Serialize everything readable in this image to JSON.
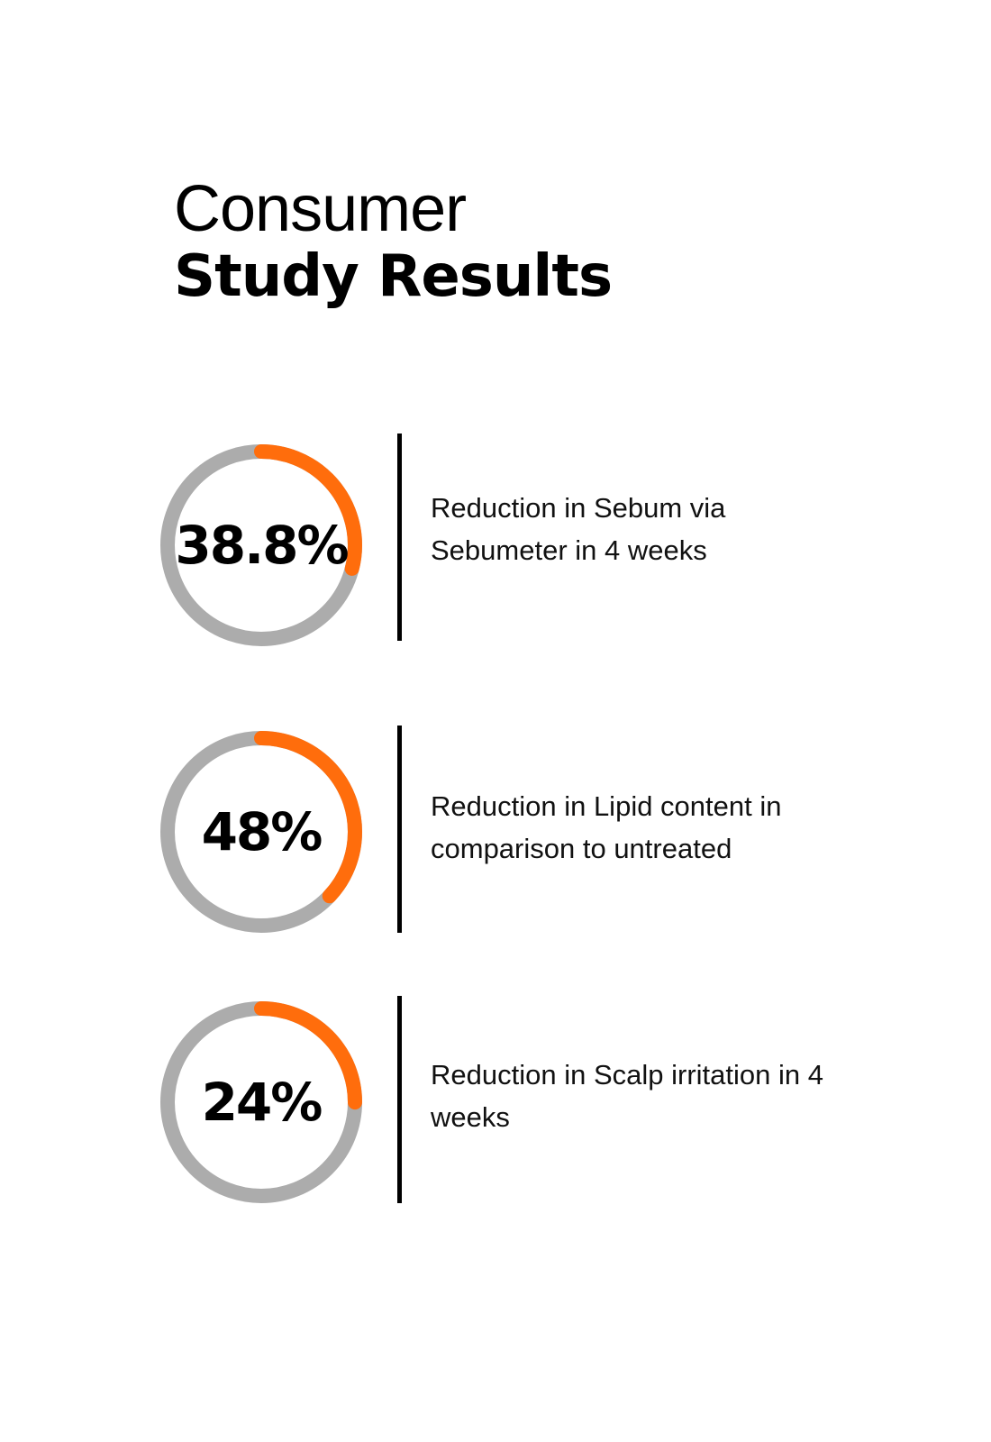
{
  "title": {
    "line1": "Consumer",
    "line2": "Study Results"
  },
  "colors": {
    "accent": "#ff6d0c",
    "track": "#acacac",
    "text": "#000000"
  },
  "chart_data": {
    "type": "pie",
    "items": [
      {
        "label_text": "38.8%",
        "value": 38.8,
        "description": "Reduction in Sebum via Sebumeter in 4 weeks",
        "ring_fill_fraction": 0.29
      },
      {
        "label_text": "48%",
        "value": 48,
        "description": "Reduction in Lipid content in comparison to untreated",
        "ring_fill_fraction": 0.37
      },
      {
        "label_text": "24%",
        "value": 24,
        "description": "Reduction in Scalp irritation in 4 weeks",
        "ring_fill_fraction": 0.25
      }
    ]
  }
}
